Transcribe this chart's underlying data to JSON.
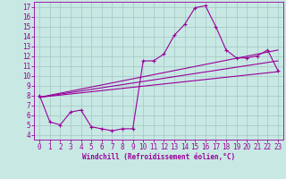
{
  "background_color": "#c8e8e4",
  "grid_color": "#a8ccc8",
  "line_color": "#990099",
  "xlabel": "Windchill (Refroidissement éolien,°C)",
  "xlim": [
    -0.5,
    23.5
  ],
  "ylim": [
    3.5,
    17.5
  ],
  "xticks": [
    0,
    1,
    2,
    3,
    4,
    5,
    6,
    7,
    8,
    9,
    10,
    11,
    12,
    13,
    14,
    15,
    16,
    17,
    18,
    19,
    20,
    21,
    22,
    23
  ],
  "yticks": [
    4,
    5,
    6,
    7,
    8,
    9,
    10,
    11,
    12,
    13,
    14,
    15,
    16,
    17
  ],
  "main_x": [
    0,
    1,
    2,
    3,
    4,
    5,
    6,
    7,
    8,
    9,
    10,
    11,
    12,
    13,
    14,
    15,
    16,
    17,
    18,
    19,
    20,
    21,
    22,
    23
  ],
  "main_y": [
    8.0,
    5.3,
    5.0,
    6.3,
    6.5,
    4.8,
    4.6,
    4.4,
    4.6,
    4.6,
    11.5,
    11.5,
    12.2,
    14.1,
    15.2,
    16.9,
    17.1,
    15.0,
    12.6,
    11.8,
    11.8,
    12.0,
    12.6,
    10.5
  ],
  "ref_line1_x": [
    0,
    23
  ],
  "ref_line1_y": [
    7.8,
    12.6
  ],
  "ref_line2_x": [
    0,
    23
  ],
  "ref_line2_y": [
    7.8,
    11.5
  ],
  "ref_line3_x": [
    0,
    23
  ],
  "ref_line3_y": [
    7.8,
    10.4
  ],
  "tick_fontsize": 5.5,
  "xlabel_fontsize": 5.5,
  "figwidth": 3.2,
  "figheight": 2.0,
  "dpi": 100
}
